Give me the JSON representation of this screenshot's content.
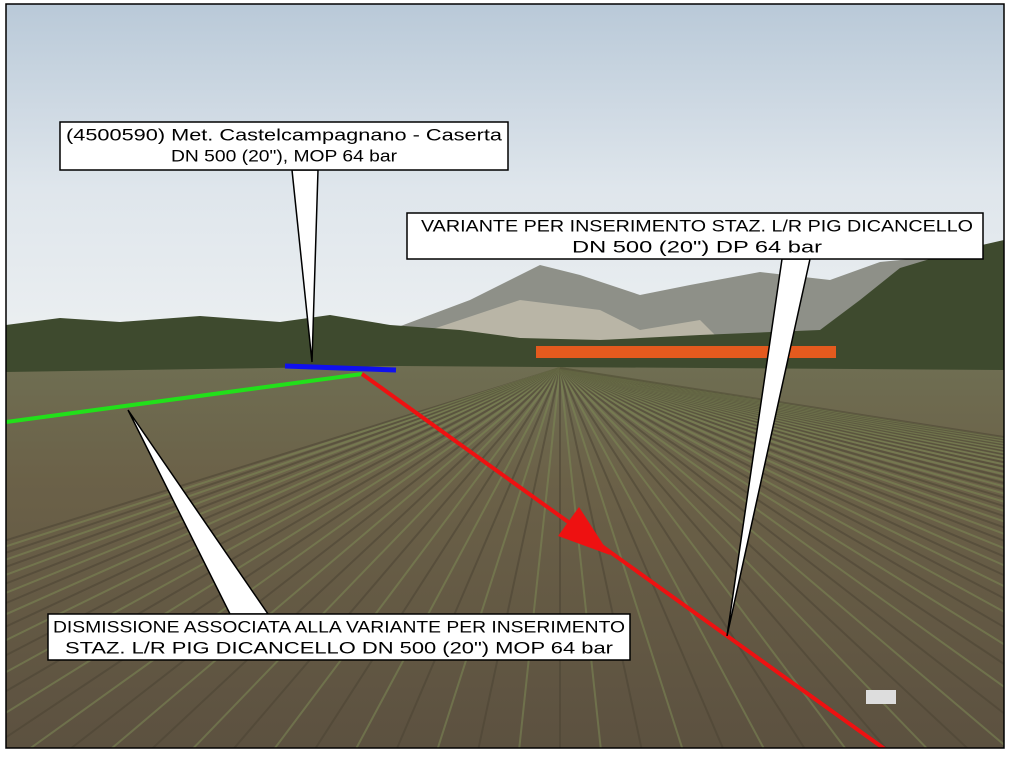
{
  "callouts": [
    {
      "lines": [
        "(4500590) Met. Castelcampagnano - Caserta",
        "DN 500 (20\"), MOP 64 bar"
      ]
    },
    {
      "lines": [
        "VARIANTE  PER INSERIMENTO STAZ. L/R PIG DICANCELLO",
        "DN 500 (20\") DP 64 bar"
      ]
    },
    {
      "lines": [
        "DISMISSIONE ASSOCIATA ALLA VARIANTE  PER INSERIMENTO",
        "STAZ. L/R PIG DICANCELLO DN 500 (20\") MOP 64 bar"
      ]
    }
  ]
}
